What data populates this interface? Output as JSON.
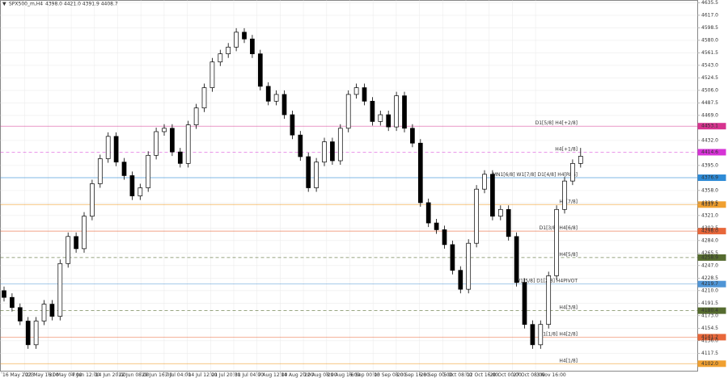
{
  "chart_data": {
    "type": "candlestick",
    "title": "SPX500_m,H4",
    "header_values": "4398.0 4421.0 4391.9 4408.7",
    "up_color": "#ffffff",
    "down_color": "#000000",
    "edge_color": "#000000",
    "grid": true,
    "ylim": [
      4091,
      4639
    ],
    "yticks": [
      {
        "value": 4635.5,
        "label": "4635.5"
      },
      {
        "value": 4617,
        "label": "4617.0"
      },
      {
        "value": 4598.5,
        "label": "4598.5"
      },
      {
        "value": 4580,
        "label": "4580.0"
      },
      {
        "value": 4561.5,
        "label": "4561.5"
      },
      {
        "value": 4543,
        "label": "4543.0"
      },
      {
        "value": 4524.5,
        "label": "4524.5"
      },
      {
        "value": 4506,
        "label": "4506.0"
      },
      {
        "value": 4487.5,
        "label": "4487.5"
      },
      {
        "value": 4469,
        "label": "4469.0"
      },
      {
        "value": 4432,
        "label": "4432.0"
      },
      {
        "value": 4395,
        "label": "4395.0"
      },
      {
        "value": 4358,
        "label": "4358.0"
      },
      {
        "value": 4339.5,
        "label": "4339.5"
      },
      {
        "value": 4321,
        "label": "4321.0"
      },
      {
        "value": 4302.5,
        "label": "4302.5"
      },
      {
        "value": 4284,
        "label": "4284.0"
      },
      {
        "value": 4265.5,
        "label": "4265.5"
      },
      {
        "value": 4247,
        "label": "4247.0"
      },
      {
        "value": 4228.5,
        "label": "4228.5"
      },
      {
        "value": 4210,
        "label": "4210.0"
      },
      {
        "value": 4191.5,
        "label": "4191.5"
      },
      {
        "value": 4173,
        "label": "4173.0"
      },
      {
        "value": 4154.5,
        "label": "4154.5"
      },
      {
        "value": 4136,
        "label": "4136.0"
      },
      {
        "value": 4117.5,
        "label": "4117.5"
      }
    ],
    "xlabels": [
      "16 May 2023",
      "23 May 16:00",
      "31 May 04:00",
      "7 Jun 12:00",
      "14 Jun 20:00",
      "22 Jun 08:00",
      "29 Jun 16:00",
      "7 Jul 04:00",
      "14 Jul 12:00",
      "21 Jul 20:00",
      "31 Jul 04:00",
      "7 Aug 12:00",
      "14 Aug 20:00",
      "22 Aug 08:00",
      "29 Aug 16:00",
      "6 Sep 00:00",
      "13 Sep 08:00",
      "20 Sep 16:00",
      "28 Sep 00:00",
      "5 Oct 08:00",
      "12 Oct 16:00",
      "20 Oct 00:00",
      "27 Oct 08:00",
      "3 Nov 16:00"
    ],
    "open": [
      4210,
      4200,
      4185,
      4165,
      4130,
      4165,
      4190,
      4172,
      4250,
      4290,
      4272,
      4320,
      4368,
      4405,
      4438,
      4400,
      4380,
      4350,
      4362,
      4410,
      4445,
      4450,
      4415,
      4398,
      4455,
      4480,
      4510,
      4548,
      4560,
      4570,
      4592,
      4582,
      4560,
      4512,
      4490,
      4500,
      4470,
      4440,
      4408,
      4362,
      4400,
      4430,
      4402,
      4450,
      4500,
      4510,
      4490,
      4460,
      4470,
      4452,
      4498,
      4450,
      4428,
      4340,
      4310,
      4300,
      4278,
      4240,
      4212,
      4280,
      4360,
      4382,
      4320,
      4330,
      4290,
      4222,
      4160,
      4130,
      4160,
      4232,
      4330,
      4372,
      4398
    ],
    "high": [
      4216,
      4206,
      4191,
      4171,
      4171,
      4196,
      4196,
      4256,
      4296,
      4296,
      4326,
      4374,
      4411,
      4444,
      4444,
      4406,
      4386,
      4368,
      4416,
      4451,
      4456,
      4456,
      4421,
      4461,
      4486,
      4516,
      4554,
      4566,
      4576,
      4598,
      4598,
      4588,
      4566,
      4518,
      4506,
      4506,
      4476,
      4446,
      4414,
      4406,
      4436,
      4436,
      4456,
      4506,
      4516,
      4516,
      4496,
      4476,
      4476,
      4504,
      4504,
      4456,
      4434,
      4346,
      4316,
      4306,
      4284,
      4246,
      4286,
      4366,
      4388,
      4388,
      4336,
      4336,
      4296,
      4228,
      4166,
      4166,
      4238,
      4336,
      4378,
      4404,
      4421
    ],
    "low": [
      4194,
      4179,
      4159,
      4124,
      4124,
      4159,
      4166,
      4166,
      4244,
      4266,
      4266,
      4314,
      4362,
      4399,
      4394,
      4374,
      4344,
      4344,
      4356,
      4404,
      4439,
      4409,
      4392,
      4392,
      4449,
      4474,
      4504,
      4542,
      4554,
      4564,
      4576,
      4554,
      4506,
      4484,
      4484,
      4464,
      4434,
      4402,
      4356,
      4356,
      4394,
      4396,
      4396,
      4444,
      4494,
      4484,
      4454,
      4454,
      4446,
      4446,
      4444,
      4422,
      4334,
      4304,
      4294,
      4272,
      4234,
      4206,
      4206,
      4274,
      4354,
      4314,
      4314,
      4284,
      4216,
      4154,
      4124,
      4124,
      4154,
      4226,
      4324,
      4366,
      4391.9
    ],
    "close": [
      4200,
      4185,
      4165,
      4130,
      4165,
      4190,
      4172,
      4250,
      4290,
      4272,
      4320,
      4368,
      4405,
      4438,
      4400,
      4380,
      4350,
      4362,
      4410,
      4445,
      4450,
      4415,
      4398,
      4455,
      4480,
      4510,
      4548,
      4560,
      4570,
      4592,
      4582,
      4560,
      4512,
      4490,
      4500,
      4470,
      4440,
      4408,
      4362,
      4400,
      4430,
      4402,
      4450,
      4500,
      4510,
      4490,
      4460,
      4470,
      4452,
      4498,
      4450,
      4428,
      4340,
      4310,
      4300,
      4278,
      4240,
      4212,
      4280,
      4360,
      4382,
      4320,
      4330,
      4290,
      4222,
      4160,
      4130,
      4160,
      4232,
      4330,
      4372,
      4398,
      4408.7
    ],
    "levels": [
      {
        "name": "D1[5/8] H4[+2/8]",
        "value": 4453.1,
        "value_label": "4453.1",
        "color": "#d6338f",
        "dashed": false
      },
      {
        "name": "H4[+1/8]",
        "value": 4414.6,
        "value_label": "4414.6",
        "color": "#d633d6",
        "dashed": true
      },
      {
        "name": "MN1[6/8] W1[7/8] D1[4/8] H4[RES]",
        "value": 4376.9,
        "value_label": "4376.9",
        "color": "#2e8bd6",
        "dashed": false
      },
      {
        "name": "H4[7/8]",
        "value": 4337.2,
        "value_label": "4337.2",
        "color": "#f0a030",
        "dashed": false
      },
      {
        "name": "D1[3/8] H4[6/8]",
        "value": 4298,
        "value_label": "4298.0",
        "color": "#e8673a",
        "dashed": false
      },
      {
        "name": "H4[5/8]",
        "value": 4258.9,
        "value_label": "4258.9",
        "color": "#556b2f",
        "dashed": true
      },
      {
        "name": "W1[5/8] D1[2/8] H4PIVOT",
        "value": 4219.7,
        "value_label": "4219.7",
        "color": "#4f95d6",
        "dashed": false
      },
      {
        "name": "H4[3/8]",
        "value": 4180.4,
        "value_label": "4180.4",
        "color": "#556b2f",
        "dashed": true
      },
      {
        "name": "D1[1/8] H4[2/8]",
        "value": 4141.2,
        "value_label": "4141.2",
        "color": "#e8673a",
        "dashed": false
      },
      {
        "name": "H4[1/8]",
        "value": 4102,
        "value_label": "4102.0",
        "color": "#f0a030",
        "dashed": false
      }
    ]
  }
}
